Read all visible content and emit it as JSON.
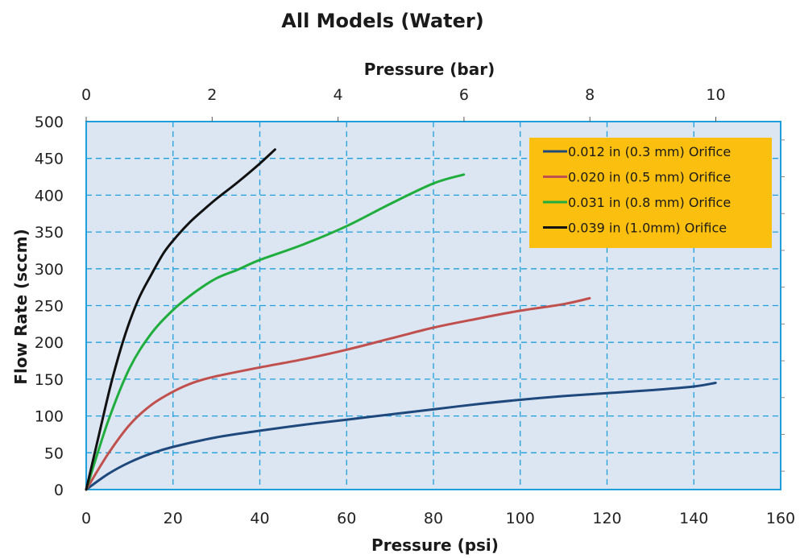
{
  "chart_data": {
    "type": "line",
    "title": "All Models (Water)",
    "xlabel": "Pressure (psi)",
    "x2label": "Pressure (bar)",
    "ylabel": "Flow Rate (sccm)",
    "xlim": [
      0,
      160
    ],
    "ylim": [
      0,
      500
    ],
    "x2lim": [
      0,
      11.03
    ],
    "x_ticks": [
      "0",
      "20",
      "40",
      "60",
      "80",
      "100",
      "120",
      "140",
      "160"
    ],
    "x2_ticks": [
      "0",
      "2",
      "4",
      "6",
      "8",
      "10"
    ],
    "y_ticks": [
      "0",
      "50",
      "100",
      "150",
      "200",
      "250",
      "300",
      "350",
      "400",
      "450",
      "500"
    ],
    "grid": true,
    "legend_position": "top-right",
    "colors": {
      "plot_bg": "#dce6f2",
      "grid": "#1f9fdc",
      "legend_bg": "#fbbf0f"
    },
    "series": [
      {
        "name": "0.012 in (0.3 mm) Orifice",
        "color": "#1f497d",
        "x": [
          0,
          5,
          10,
          15,
          20,
          30,
          40,
          50,
          60,
          70,
          80,
          90,
          100,
          110,
          120,
          130,
          140,
          145
        ],
        "y": [
          0,
          21,
          37,
          49,
          58,
          71,
          80,
          88,
          95,
          102,
          109,
          116,
          122,
          127,
          131,
          135,
          140,
          145
        ]
      },
      {
        "name": "0.020 in (0.5 mm) Orifice",
        "color": "#c0504d",
        "x": [
          0,
          5,
          10,
          15,
          20,
          25,
          30,
          40,
          50,
          60,
          70,
          80,
          90,
          100,
          110,
          116
        ],
        "y": [
          0,
          48,
          88,
          115,
          133,
          146,
          154,
          166,
          177,
          190,
          205,
          220,
          232,
          243,
          252,
          260
        ]
      },
      {
        "name": "0.031 in (0.8 mm) Orifice",
        "color": "#1fad3d",
        "x": [
          0,
          5,
          10,
          15,
          20,
          25,
          30,
          35,
          40,
          50,
          60,
          70,
          80,
          87
        ],
        "y": [
          0,
          92,
          165,
          212,
          244,
          268,
          287,
          299,
          312,
          333,
          358,
          388,
          416,
          428
        ]
      },
      {
        "name": "0.039 in (1.0mm) Orifice",
        "color": "#111111",
        "x": [
          0,
          3,
          6,
          9,
          12,
          15,
          18,
          21,
          24,
          27,
          30,
          35,
          40,
          43.5
        ],
        "y": [
          0,
          76,
          150,
          211,
          258,
          292,
          323,
          345,
          364,
          380,
          395,
          418,
          443,
          462
        ]
      }
    ]
  }
}
